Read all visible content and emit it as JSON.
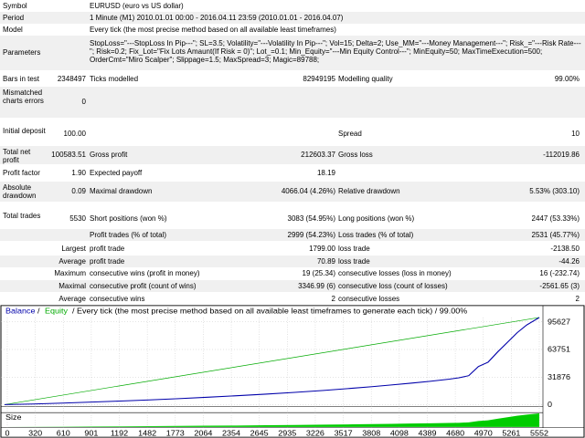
{
  "report": {
    "symbol": {
      "label": "Symbol",
      "value": "EURUSD (euro vs US dollar)"
    },
    "period": {
      "label": "Period",
      "value": "1 Minute (M1) 2010.01.01 00:00 - 2016.04.11 23:59 (2010.01.01 - 2016.04.07)"
    },
    "model": {
      "label": "Model",
      "value": "Every tick (the most precise method based on all available least timeframes)"
    },
    "parameters": {
      "label": "Parameters",
      "value": "StopLoss=\"---StopLoss In Pip---\"; SL=3.5; Volatility=\"---Volatility In Pip---\"; Vol=15; Delta=2; Use_MM=\"---Money Management---\"; Risk_=\"---Risk Rate---\"; Risk=0.2; Fix_Lot=\"Fix Lots Amaunt(If Risk = 0)\"; Lot_=0.1; Min_Equity=\"---Min Equity Control---\"; MinEquity=50; MaxTimeExecution=500; OrderCmt=\"Miro Scalper\"; Slippage=1.5; MaxSpread=3; Magic=89788;"
    },
    "bars": {
      "label": "Bars in test",
      "value": "2348497",
      "ticks_label": "Ticks modelled",
      "ticks_value": "82949195",
      "quality_label": "Modelling quality",
      "quality_value": "99.00%"
    },
    "mismatched": {
      "label": "Mismatched charts errors",
      "value": "0"
    },
    "initial": {
      "label": "Initial deposit",
      "value": "100.00",
      "spread_label": "Spread",
      "spread_value": "10"
    },
    "net": {
      "label": "Total net profit",
      "value": "100583.51",
      "gp_label": "Gross profit",
      "gp_value": "212603.37",
      "gl_label": "Gross loss",
      "gl_value": "-112019.86"
    },
    "pf": {
      "label": "Profit factor",
      "value": "1.90",
      "ep_label": "Expected payoff",
      "ep_value": "18.19"
    },
    "dd": {
      "label": "Absolute drawdown",
      "value": "0.09",
      "max_label": "Maximal drawdown",
      "max_value": "4066.04 (4.26%)",
      "rel_label": "Relative drawdown",
      "rel_value": "5.53% (303.10)"
    },
    "trades": {
      "label": "Total trades",
      "value": "5530",
      "short_label": "Short positions (won %)",
      "short_value": "3083 (54.95%)",
      "long_label": "Long positions (won %)",
      "long_value": "2447 (53.33%)"
    },
    "pt": {
      "label": "Profit trades (% of total)",
      "value": "2999 (54.23%)",
      "lt_label": "Loss trades (% of total)",
      "lt_value": "2531 (45.77%)"
    },
    "largest": {
      "label": "Largest",
      "p_label": "profit trade",
      "p_value": "1799.00",
      "l_label": "loss trade",
      "l_value": "-2138.50"
    },
    "average": {
      "label": "Average",
      "p_label": "profit trade",
      "p_value": "70.89",
      "l_label": "loss trade",
      "l_value": "-44.26"
    },
    "maximum": {
      "label": "Maximum",
      "p_label": "consecutive wins (profit in money)",
      "p_value": "19 (25.34)",
      "l_label": "consecutive losses (loss in money)",
      "l_value": "16 (-232.74)"
    },
    "maximal": {
      "label": "Maximal",
      "p_label": "consecutive profit (count of wins)",
      "p_value": "3346.99 (6)",
      "l_label": "consecutive loss (count of losses)",
      "l_value": "-2561.65 (3)"
    },
    "avg2": {
      "label": "Average",
      "p_label": "consecutive wins",
      "p_value": "2",
      "l_label": "consecutive losses",
      "l_value": "2"
    }
  },
  "chart_data": {
    "type": "line",
    "legend": {
      "balance": "Balance",
      "sep": "/",
      "equity": "Equity"
    },
    "title": "/ Every tick (the most precise method based on all available least timeframes to generate each tick) / 99.00%",
    "x": [
      0,
      320,
      610,
      901,
      1192,
      1482,
      1773,
      2064,
      2354,
      2645,
      2935,
      3226,
      3517,
      3808,
      4098,
      4389,
      4680,
      4970,
      5261,
      5552
    ],
    "x_tick_labels": [
      "0",
      "320",
      "610",
      "901",
      "1192",
      "1482",
      "1773",
      "2064",
      "2354",
      "2645",
      "2935",
      "3226",
      "3517",
      "3808",
      "4098",
      "4389",
      "4680",
      "4970",
      "5261",
      "5552"
    ],
    "y_tick_labels": [
      "95627",
      "63751",
      "31876",
      "0"
    ],
    "y_ticks": [
      95627,
      63751,
      31876,
      0
    ],
    "ylim": [
      0,
      100700
    ],
    "xlim": [
      0,
      5530
    ],
    "series": [
      {
        "name": "Balance",
        "color": "#0000aa",
        "x": [
          0,
          300,
          600,
          900,
          1200,
          1500,
          1800,
          2100,
          2400,
          2700,
          3000,
          3300,
          3600,
          3800,
          4000,
          4200,
          4400,
          4600,
          4700,
          4800,
          4900,
          5000,
          5100,
          5200,
          5300,
          5400,
          5530
        ],
        "y": [
          100,
          800,
          1800,
          3000,
          4200,
          5500,
          7000,
          8600,
          10300,
          12200,
          14200,
          16500,
          19000,
          20800,
          22800,
          24800,
          27000,
          29500,
          31000,
          33500,
          44000,
          49000,
          61000,
          72000,
          83000,
          92000,
          100683
        ]
      },
      {
        "name": "Equity",
        "color": "#00aa00",
        "x": [
          0,
          5530
        ],
        "y": [
          100,
          100683
        ]
      }
    ],
    "volume_label": "Size",
    "volume_color": "#00cc00"
  }
}
